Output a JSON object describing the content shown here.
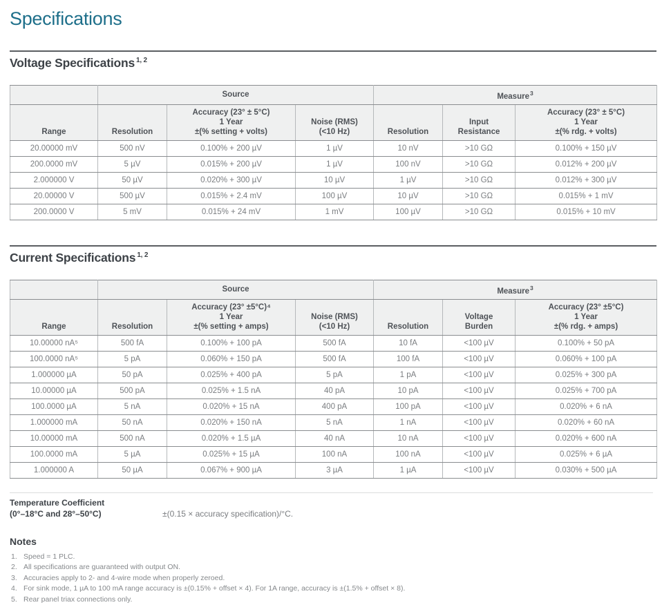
{
  "colors": {
    "accent_teal": "#1e6f8a",
    "heading_dark": "#3d4247",
    "table_header_bg": "#eff0f0",
    "body_text_gray": "#7a7d80"
  },
  "page": {
    "title": "Specifications"
  },
  "voltage_section": {
    "heading": "Voltage Specifications",
    "heading_sup": "1, 2",
    "table": {
      "group_source": "Source",
      "group_measure": "Measure",
      "group_measure_sup": "3",
      "columns": [
        "Range",
        "Resolution",
        "Accuracy (23° ± 5°C)\n1 Year\n±(% setting + volts)",
        "Noise (RMS)\n(<10 Hz)",
        "Resolution",
        "Input\nResistance",
        "Accuracy (23° ± 5°C)\n1 Year\n±(% rdg. + volts)"
      ],
      "rows": [
        [
          "20.00000 mV",
          "500 nV",
          "0.100% + 200 µV",
          "1 µV",
          "10 nV",
          ">10 GΩ",
          "0.100% + 150 µV"
        ],
        [
          "200.0000 mV",
          "5 µV",
          "0.015% + 200 µV",
          "1 µV",
          "100 nV",
          ">10 GΩ",
          "0.012% + 200 µV"
        ],
        [
          "2.000000 V",
          "50 µV",
          "0.020% + 300 µV",
          "10 µV",
          "1 µV",
          ">10 GΩ",
          "0.012% + 300 µV"
        ],
        [
          "20.00000 V",
          "500 µV",
          "0.015% + 2.4 mV",
          "100 µV",
          "10 µV",
          ">10 GΩ",
          "0.015% + 1 mV"
        ],
        [
          "200.0000 V",
          "5 mV",
          "0.015% + 24 mV",
          "1 mV",
          "100 µV",
          ">10 GΩ",
          "0.015% + 10 mV"
        ]
      ]
    }
  },
  "current_section": {
    "heading": "Current Specifications",
    "heading_sup": "1, 2",
    "table": {
      "group_source": "Source",
      "group_measure": "Measure",
      "group_measure_sup": "3",
      "columns": [
        "Range",
        "Resolution",
        "Accuracy (23° ±5°C)⁴\n1 Year\n±(% setting + amps)",
        "Noise (RMS)\n(<10 Hz)",
        "Resolution",
        "Voltage\nBurden",
        "Accuracy (23° ±5°C)\n1 Year\n±(% rdg. + amps)"
      ],
      "rows": [
        [
          "10.00000 nA⁵",
          "500 fA",
          "0.100% + 100 pA",
          "500 fA",
          "10 fA",
          "<100 µV",
          "0.100% + 50 pA"
        ],
        [
          "100.0000 nA⁵",
          "5 pA",
          "0.060% + 150 pA",
          "500 fA",
          "100 fA",
          "<100 µV",
          "0.060% + 100 pA"
        ],
        [
          "1.000000 µA",
          "50 pA",
          "0.025% + 400 pA",
          "5 pA",
          "1 pA",
          "<100 µV",
          "0.025% + 300 pA"
        ],
        [
          "10.00000 µA",
          "500 pA",
          "0.025% + 1.5 nA",
          "40 pA",
          "10 pA",
          "<100 µV",
          "0.025% + 700 pA"
        ],
        [
          "100.0000 µA",
          "5 nA",
          "0.020% + 15 nA",
          "400 pA",
          "100 pA",
          "<100 µV",
          "0.020% + 6 nA"
        ],
        [
          "1.000000 mA",
          "50 nA",
          "0.020% + 150 nA",
          "5 nA",
          "1 nA",
          "<100 µV",
          "0.020% + 60 nA"
        ],
        [
          "10.00000 mA",
          "500 nA",
          "0.020% + 1.5 µA",
          "40 nA",
          "10 nA",
          "<100 µV",
          "0.020% + 600 nA"
        ],
        [
          "100.0000 mA",
          "5 µA",
          "0.025% + 15 µA",
          "100 nA",
          "100 nA",
          "<100 µV",
          "0.025% + 6 µA"
        ],
        [
          "1.000000 A",
          "50 µA",
          "0.067% + 900 µA",
          "3 µA",
          "1 µA",
          "<100 µV",
          "0.030% + 500 µA"
        ]
      ]
    }
  },
  "temperature_coefficient": {
    "label_line1": "Temperature Coefficient",
    "label_line2": "(0°–18°C and 28°–50°C)",
    "value": "±(0.15 × accuracy specification)/°C."
  },
  "notes": {
    "heading": "Notes",
    "items": [
      {
        "num": "1.",
        "text": "Speed = 1 PLC."
      },
      {
        "num": "2.",
        "text": "All specifications are guaranteed with output ON."
      },
      {
        "num": "3.",
        "text": "Accuracies apply to 2- and 4-wire mode when properly zeroed."
      },
      {
        "num": "4.",
        "text": "For sink mode, 1 µA to 100 mA range accuracy is ±(0.15% + offset × 4). For 1A range, accuracy is ±(1.5% + offset × 8)."
      },
      {
        "num": "5.",
        "text": "Rear panel triax connections only."
      }
    ]
  }
}
